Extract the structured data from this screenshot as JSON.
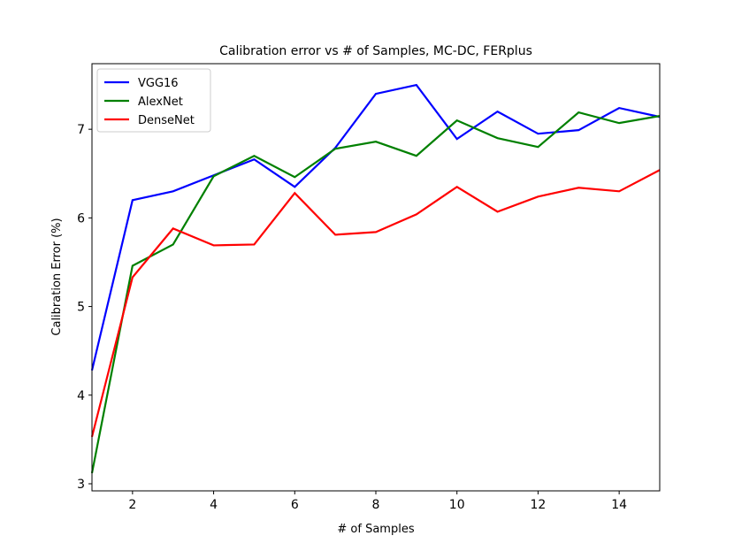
{
  "chart_data": {
    "type": "line",
    "title": "Calibration error vs # of Samples, MC-DC, FERplus",
    "x_label": "# of Samples",
    "y_label": "Calibration Error (%)",
    "x": [
      1,
      2,
      3,
      4,
      5,
      6,
      7,
      8,
      9,
      10,
      11,
      12,
      13,
      14,
      15
    ],
    "series": [
      {
        "name": "VGG16",
        "color": "#0000ff",
        "values": [
          4.28,
          6.2,
          6.3,
          6.48,
          6.66,
          6.35,
          6.79,
          7.4,
          7.5,
          6.89,
          7.2,
          6.95,
          6.99,
          7.24,
          7.14
        ]
      },
      {
        "name": "AlexNet",
        "color": "#008000",
        "values": [
          3.12,
          5.46,
          5.7,
          6.47,
          6.7,
          6.46,
          6.78,
          6.86,
          6.7,
          7.1,
          6.9,
          6.8,
          7.19,
          7.07,
          7.15
        ]
      },
      {
        "name": "DenseNet",
        "color": "#ff0000",
        "values": [
          3.53,
          5.33,
          5.88,
          5.69,
          5.7,
          6.28,
          5.81,
          5.84,
          6.04,
          6.35,
          6.07,
          6.24,
          6.34,
          6.3,
          6.54
        ]
      }
    ],
    "xlim": [
      1,
      15
    ],
    "ylim": [
      2.92,
      7.74
    ],
    "xticks": [
      2,
      4,
      6,
      8,
      10,
      12,
      14
    ],
    "yticks": [
      3,
      4,
      5,
      6,
      7
    ],
    "legend": "upper-left",
    "grid": false
  }
}
